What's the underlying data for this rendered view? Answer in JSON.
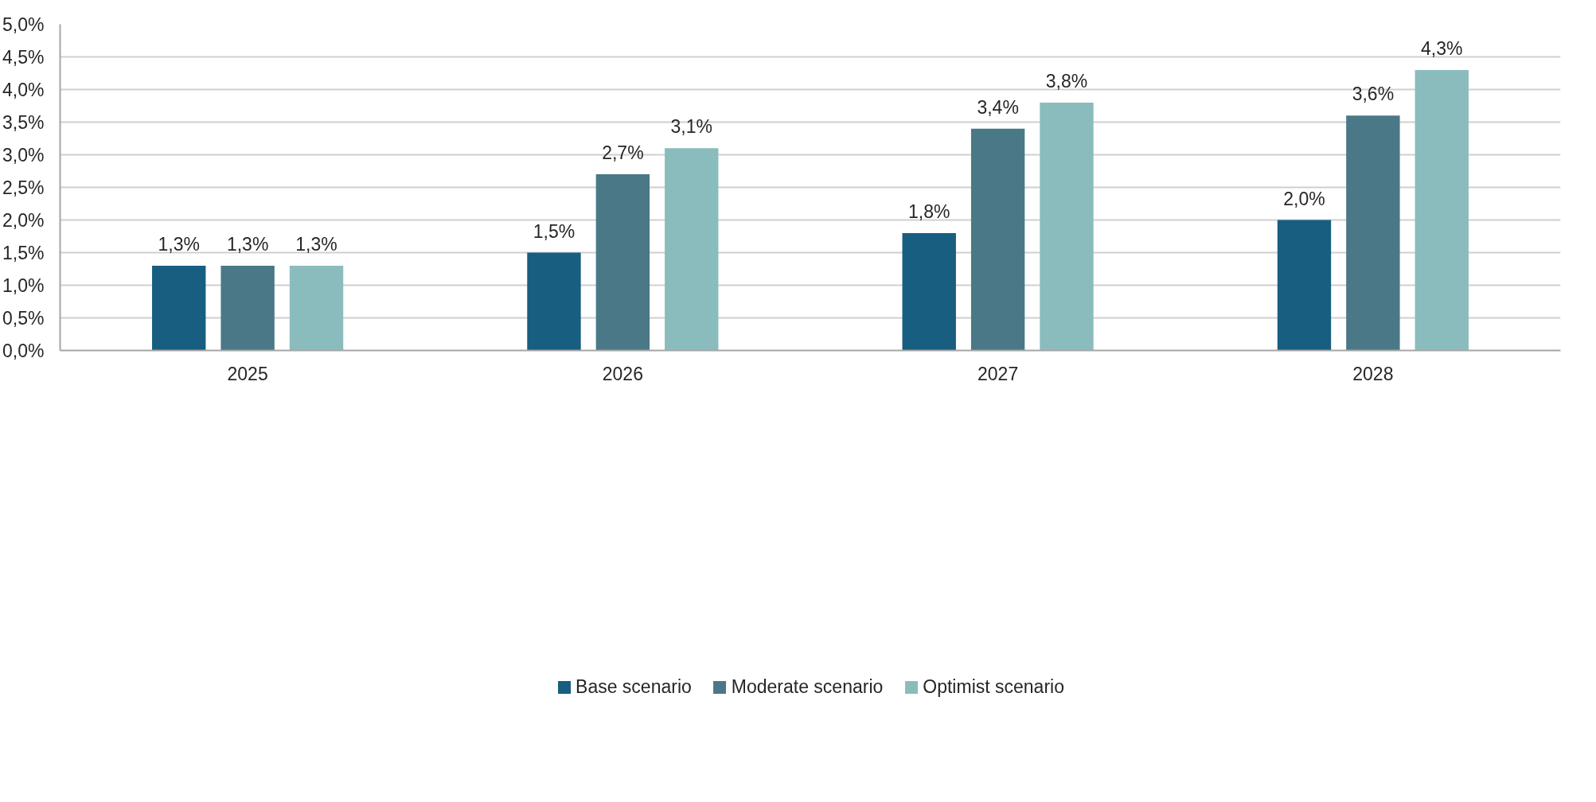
{
  "chart_data": {
    "type": "bar",
    "categories": [
      "2025",
      "2026",
      "2027",
      "2028"
    ],
    "series": [
      {
        "name": "Base scenario",
        "color": "#175e80",
        "values": [
          1.3,
          1.5,
          1.8,
          2.0
        ],
        "value_labels": [
          "1,3%",
          "1,5%",
          "1,8%",
          "2,0%"
        ]
      },
      {
        "name": "Moderate scenario",
        "color": "#4a7887",
        "values": [
          1.3,
          2.7,
          3.4,
          3.6
        ],
        "value_labels": [
          "1,3%",
          "2,7%",
          "3,4%",
          "3,6%"
        ]
      },
      {
        "name": "Optimist scenario",
        "color": "#8abcbd",
        "values": [
          1.3,
          3.1,
          3.8,
          4.3
        ],
        "value_labels": [
          "1,3%",
          "3,1%",
          "3,8%",
          "4,3%"
        ]
      }
    ],
    "ylim": [
      0,
      5
    ],
    "yticks": [
      {
        "value": 0,
        "label": "0,0%"
      },
      {
        "value": 0.5,
        "label": "0,5%"
      },
      {
        "value": 1,
        "label": "1,0%"
      },
      {
        "value": 1.5,
        "label": "1,5%"
      },
      {
        "value": 2,
        "label": "2,0%"
      },
      {
        "value": 2.5,
        "label": "2,5%"
      },
      {
        "value": 3,
        "label": "3,0%"
      },
      {
        "value": 3.5,
        "label": "3,5%"
      },
      {
        "value": 4,
        "label": "4,0%"
      },
      {
        "value": 4.5,
        "label": "4,5%"
      },
      {
        "value": 5,
        "label": "5,0%"
      }
    ],
    "grid": "y",
    "legend": "bottom"
  }
}
